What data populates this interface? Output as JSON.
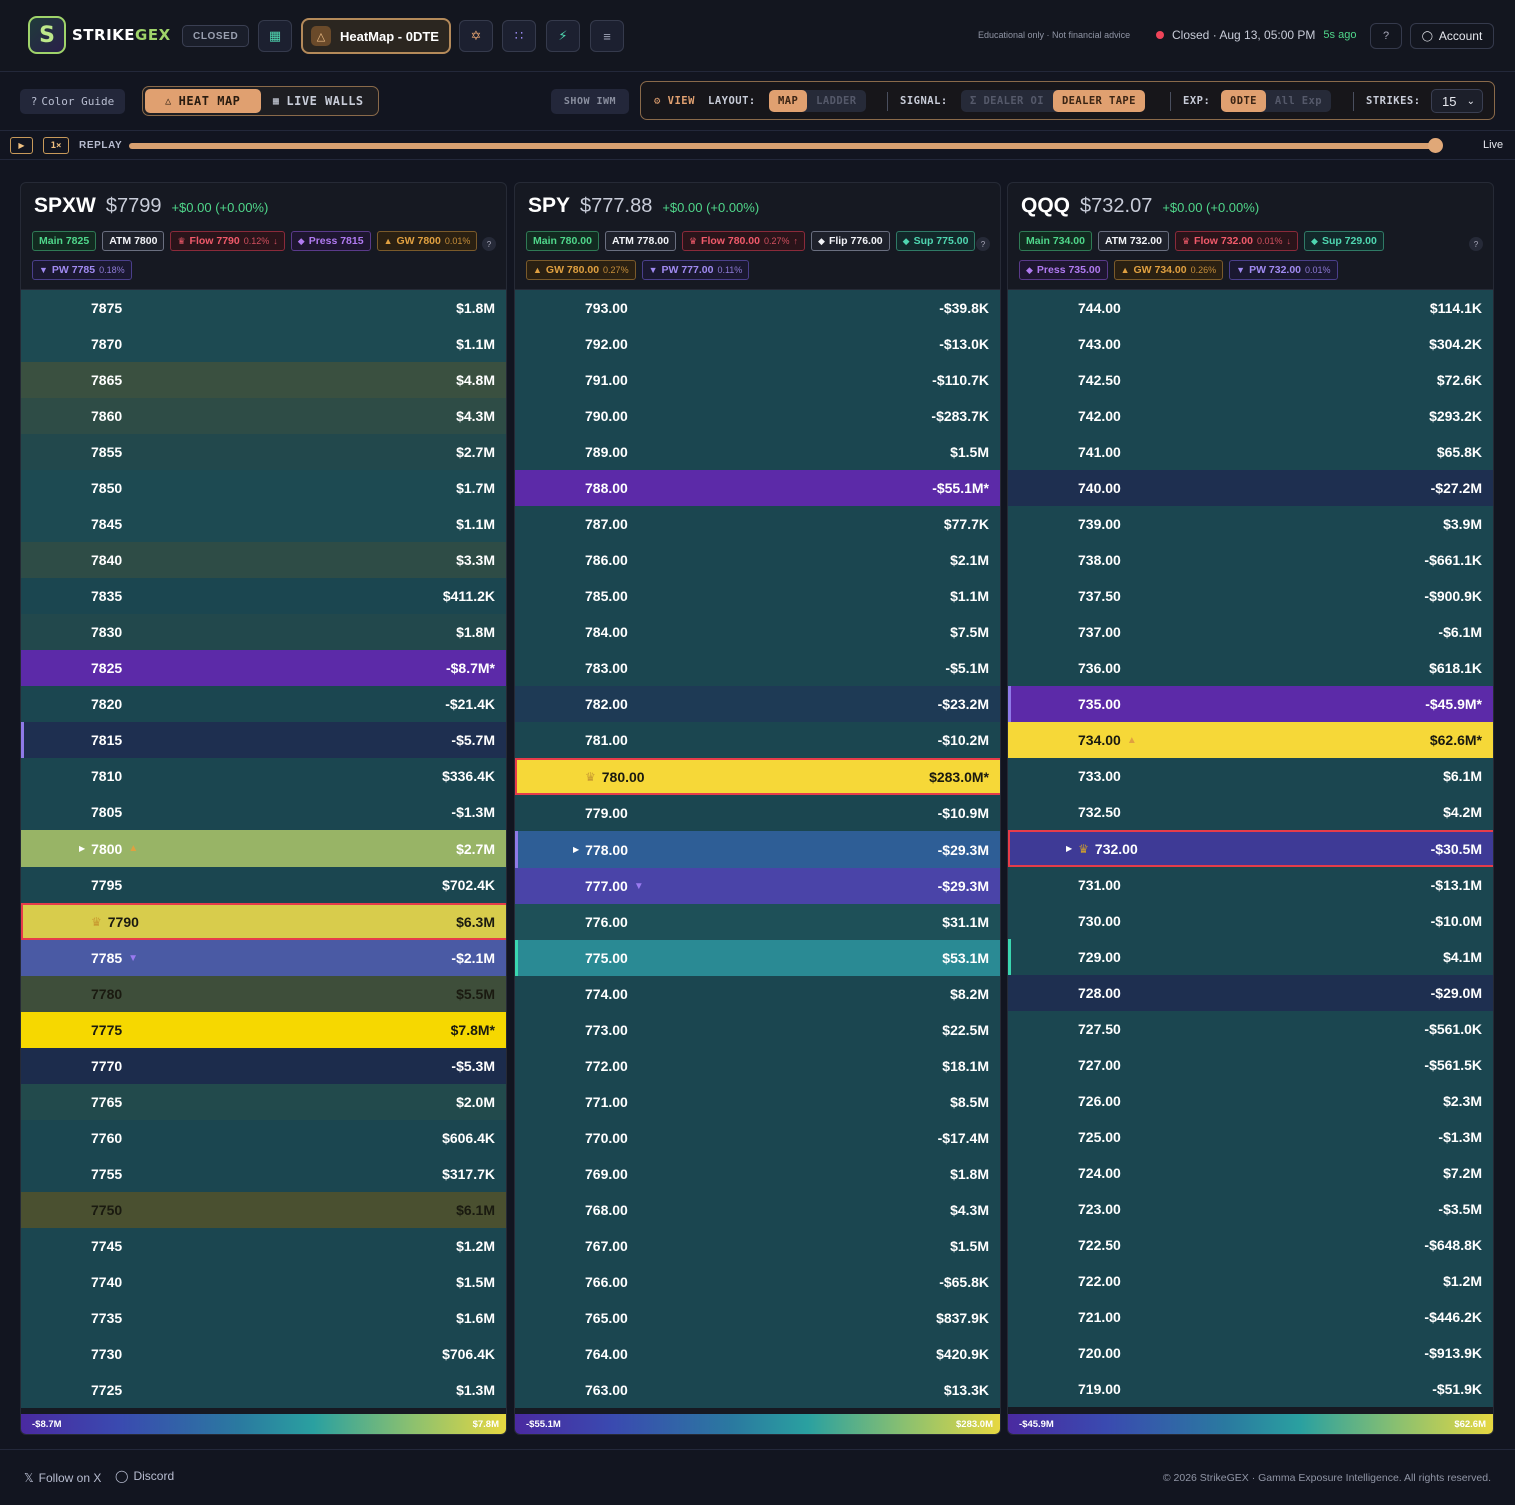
{
  "header": {
    "logo_text_a": "STRIKE",
    "logo_text_b": "GEX",
    "market_status_chip": "CLOSED",
    "active_tab": "HeatMap - 0DTE",
    "disclaimer": "Educational only · Not financial advice",
    "status_text": "Closed · Aug 13, 05:00 PM",
    "status_ago": "5s ago",
    "account_label": "Account"
  },
  "toolbar": {
    "color_guide": "Color Guide",
    "mode_tabs": [
      "HEAT MAP",
      "LIVE WALLS"
    ],
    "active_mode": "HEAT MAP",
    "show_iwm": "SHOW IWM",
    "view_label": "VIEW",
    "layout_label": "LAYOUT:",
    "layout_options": [
      "MAP",
      "LADDER"
    ],
    "layout_active": "MAP",
    "signal_label": "SIGNAL:",
    "signal_options": [
      "Σ DEALER OI",
      "DEALER TAPE"
    ],
    "signal_active": "DEALER TAPE",
    "exp_label": "EXP:",
    "exp_options": [
      "0DTE",
      "All Exp"
    ],
    "exp_active": "0DTE",
    "strikes_label": "STRIKES:",
    "strikes_value": "15"
  },
  "replay": {
    "speed": "1×",
    "label": "REPLAY",
    "live_label": "Live",
    "position": 1.0
  },
  "colors": {
    "accent": "#e0a070",
    "positive": "#4fd68a",
    "negative": "#ef4459",
    "call_wall": "#f6d838",
    "put_wall": "#6a2ab0"
  },
  "panels": [
    {
      "symbol": "SPXW",
      "price": "$7799",
      "change": "+$0.00 (+0.00%)",
      "tags": [
        {
          "type": "main",
          "text": "Main 7825"
        },
        {
          "type": "atm",
          "text": "ATM 7800"
        },
        {
          "type": "flow",
          "text": "Flow 7790",
          "pct": "0.12%",
          "dir": "↓",
          "icon": "crown-icon"
        },
        {
          "type": "press",
          "text": "Press 7815",
          "icon": "diamond-icon"
        },
        {
          "type": "gw",
          "text": "GW 7800",
          "pct": "0.01%",
          "icon": "up-triangle-icon"
        },
        {
          "type": "pw",
          "text": "PW 7785",
          "pct": "0.18%",
          "icon": "down-triangle-icon"
        }
      ],
      "rows": [
        {
          "strike": "7875",
          "value": "$1.8M",
          "bg": "#1d4a52"
        },
        {
          "strike": "7870",
          "value": "$1.1M",
          "bg": "#1d4a52"
        },
        {
          "strike": "7865",
          "value": "$4.8M",
          "bg": "#3a5040"
        },
        {
          "strike": "7860",
          "value": "$4.3M",
          "bg": "#2e4c46"
        },
        {
          "strike": "7855",
          "value": "$2.7M",
          "bg": "#22484c"
        },
        {
          "strike": "7850",
          "value": "$1.7M",
          "bg": "#1d4a52"
        },
        {
          "strike": "7845",
          "value": "$1.1M",
          "bg": "#1d4a52"
        },
        {
          "strike": "7840",
          "value": "$3.3M",
          "bg": "#2e4c46"
        },
        {
          "strike": "7835",
          "value": "$411.2K",
          "bg": "#1b4650"
        },
        {
          "strike": "7830",
          "value": "$1.8M",
          "bg": "#22484c"
        },
        {
          "strike": "7825",
          "value": "-$8.7M*",
          "bg": "#5c2aa8"
        },
        {
          "strike": "7820",
          "value": "-$21.4K",
          "bg": "#1b4650"
        },
        {
          "strike": "7815",
          "value": "-$5.7M",
          "bg": "#1e2f50",
          "leftbar": "purple"
        },
        {
          "strike": "7810",
          "value": "$336.4K",
          "bg": "#1b4650"
        },
        {
          "strike": "7805",
          "value": "-$1.3M",
          "bg": "#1b4650"
        },
        {
          "strike": "7800",
          "value": "$2.7M",
          "bg": "#98b466",
          "atm": true,
          "mark": "up"
        },
        {
          "strike": "7795",
          "value": "$702.4K",
          "bg": "#1b4650"
        },
        {
          "strike": "7790",
          "value": "$6.3M",
          "bg": "#d8cc4c",
          "dark": true,
          "boxed": true,
          "crown": true
        },
        {
          "strike": "7785",
          "value": "-$2.1M",
          "bg": "#4a5aa4",
          "mark": "down"
        },
        {
          "strike": "7780",
          "value": "$5.5M",
          "bg": "#3e4e3a",
          "dark": true
        },
        {
          "strike": "7775",
          "value": "$7.8M*",
          "bg": "#f6d800",
          "dark": true
        },
        {
          "strike": "7770",
          "value": "-$5.3M",
          "bg": "#1c2c4c"
        },
        {
          "strike": "7765",
          "value": "$2.0M",
          "bg": "#224a4c"
        },
        {
          "strike": "7760",
          "value": "$606.4K",
          "bg": "#1b4650"
        },
        {
          "strike": "7755",
          "value": "$317.7K",
          "bg": "#1b4650"
        },
        {
          "strike": "7750",
          "value": "$6.1M",
          "bg": "#4a5030",
          "dark": true
        },
        {
          "strike": "7745",
          "value": "$1.2M",
          "bg": "#1b4650"
        },
        {
          "strike": "7740",
          "value": "$1.5M",
          "bg": "#1b4650"
        },
        {
          "strike": "7735",
          "value": "$1.6M",
          "bg": "#1b4650"
        },
        {
          "strike": "7730",
          "value": "$706.4K",
          "bg": "#1b4650"
        },
        {
          "strike": "7725",
          "value": "$1.3M",
          "bg": "#1b4650"
        }
      ],
      "legend_min": "-$8.7M",
      "legend_max": "$7.8M"
    },
    {
      "symbol": "SPY",
      "price": "$777.88",
      "change": "+$0.00 (+0.00%)",
      "tags": [
        {
          "type": "main",
          "text": "Main 780.00"
        },
        {
          "type": "atm",
          "text": "ATM 778.00"
        },
        {
          "type": "flow",
          "text": "Flow 780.00",
          "pct": "0.27%",
          "dir": "↑",
          "icon": "crown-icon"
        },
        {
          "type": "flip",
          "text": "Flip 776.00",
          "icon": "diamond-icon"
        },
        {
          "type": "sup",
          "text": "Sup 775.00",
          "icon": "diamond-icon"
        },
        {
          "type": "gw",
          "text": "GW 780.00",
          "pct": "0.27%",
          "icon": "up-triangle-icon"
        },
        {
          "type": "pw",
          "text": "PW 777.00",
          "pct": "0.11%",
          "icon": "down-triangle-icon"
        }
      ],
      "rows": [
        {
          "strike": "793.00",
          "value": "-$39.8K",
          "bg": "#1b4650"
        },
        {
          "strike": "792.00",
          "value": "-$13.0K",
          "bg": "#1b4650"
        },
        {
          "strike": "791.00",
          "value": "-$110.7K",
          "bg": "#1b4650"
        },
        {
          "strike": "790.00",
          "value": "-$283.7K",
          "bg": "#1b4650"
        },
        {
          "strike": "789.00",
          "value": "$1.5M",
          "bg": "#1b4650"
        },
        {
          "strike": "788.00",
          "value": "-$55.1M*",
          "bg": "#5c2aa8"
        },
        {
          "strike": "787.00",
          "value": "$77.7K",
          "bg": "#1b4650"
        },
        {
          "strike": "786.00",
          "value": "$2.1M",
          "bg": "#1b4650"
        },
        {
          "strike": "785.00",
          "value": "$1.1M",
          "bg": "#1b4650"
        },
        {
          "strike": "784.00",
          "value": "$7.5M",
          "bg": "#1b4650"
        },
        {
          "strike": "783.00",
          "value": "-$5.1M",
          "bg": "#1b4650"
        },
        {
          "strike": "782.00",
          "value": "-$23.2M",
          "bg": "#1e3a55"
        },
        {
          "strike": "781.00",
          "value": "-$10.2M",
          "bg": "#1b4650"
        },
        {
          "strike": "780.00",
          "value": "$283.0M*",
          "bg": "#f6d838",
          "dark": true,
          "boxed": true,
          "crown": true
        },
        {
          "strike": "779.00",
          "value": "-$10.9M",
          "bg": "#1b4650"
        },
        {
          "strike": "778.00",
          "value": "-$29.3M",
          "bg": "#2e5e96",
          "atm": true,
          "leftbar": "purple"
        },
        {
          "strike": "777.00",
          "value": "-$29.3M",
          "bg": "#4a44a8",
          "mark": "down"
        },
        {
          "strike": "776.00",
          "value": "$31.1M",
          "bg": "#1e5058"
        },
        {
          "strike": "775.00",
          "value": "$53.1M",
          "bg": "#2a8a94",
          "leftbar": "teal"
        },
        {
          "strike": "774.00",
          "value": "$8.2M",
          "bg": "#1b4650"
        },
        {
          "strike": "773.00",
          "value": "$22.5M",
          "bg": "#1b4650"
        },
        {
          "strike": "772.00",
          "value": "$18.1M",
          "bg": "#1b4650"
        },
        {
          "strike": "771.00",
          "value": "$8.5M",
          "bg": "#1b4650"
        },
        {
          "strike": "770.00",
          "value": "-$17.4M",
          "bg": "#1b4650"
        },
        {
          "strike": "769.00",
          "value": "$1.8M",
          "bg": "#1b4650"
        },
        {
          "strike": "768.00",
          "value": "$4.3M",
          "bg": "#1b4650"
        },
        {
          "strike": "767.00",
          "value": "$1.5M",
          "bg": "#1b4650"
        },
        {
          "strike": "766.00",
          "value": "-$65.8K",
          "bg": "#1b4650"
        },
        {
          "strike": "765.00",
          "value": "$837.9K",
          "bg": "#1b4650"
        },
        {
          "strike": "764.00",
          "value": "$420.9K",
          "bg": "#1b4650"
        },
        {
          "strike": "763.00",
          "value": "$13.3K",
          "bg": "#1b4650"
        }
      ],
      "legend_min": "-$55.1M",
      "legend_max": "$283.0M"
    },
    {
      "symbol": "QQQ",
      "price": "$732.07",
      "change": "+$0.00 (+0.00%)",
      "tags": [
        {
          "type": "main",
          "text": "Main 734.00"
        },
        {
          "type": "atm",
          "text": "ATM 732.00"
        },
        {
          "type": "flow",
          "text": "Flow 732.00",
          "pct": "0.01%",
          "dir": "↓",
          "icon": "crown-icon"
        },
        {
          "type": "sup",
          "text": "Sup 729.00",
          "icon": "diamond-icon"
        },
        {
          "type": "press",
          "text": "Press 735.00",
          "icon": "diamond-icon"
        },
        {
          "type": "gw",
          "text": "GW 734.00",
          "pct": "0.26%",
          "icon": "up-triangle-icon"
        },
        {
          "type": "pw",
          "text": "PW 732.00",
          "pct": "0.01%",
          "icon": "down-triangle-icon"
        }
      ],
      "rows": [
        {
          "strike": "744.00",
          "value": "$114.1K",
          "bg": "#1b4650"
        },
        {
          "strike": "743.00",
          "value": "$304.2K",
          "bg": "#1b4650"
        },
        {
          "strike": "742.50",
          "value": "$72.6K",
          "bg": "#1b4650"
        },
        {
          "strike": "742.00",
          "value": "$293.2K",
          "bg": "#1b4650"
        },
        {
          "strike": "741.00",
          "value": "$65.8K",
          "bg": "#1b4650"
        },
        {
          "strike": "740.00",
          "value": "-$27.2M",
          "bg": "#1e2f50"
        },
        {
          "strike": "739.00",
          "value": "$3.9M",
          "bg": "#1b4650"
        },
        {
          "strike": "738.00",
          "value": "-$661.1K",
          "bg": "#1b4650"
        },
        {
          "strike": "737.50",
          "value": "-$900.9K",
          "bg": "#1b4650"
        },
        {
          "strike": "737.00",
          "value": "-$6.1M",
          "bg": "#1b4650"
        },
        {
          "strike": "736.00",
          "value": "$618.1K",
          "bg": "#1b4650"
        },
        {
          "strike": "735.00",
          "value": "-$45.9M*",
          "bg": "#5c2aa8",
          "leftbar": "purple"
        },
        {
          "strike": "734.00",
          "value": "$62.6M*",
          "bg": "#f6d838",
          "dark": true,
          "mark": "up"
        },
        {
          "strike": "733.00",
          "value": "$6.1M",
          "bg": "#1b4650"
        },
        {
          "strike": "732.50",
          "value": "$4.2M",
          "bg": "#1b4650"
        },
        {
          "strike": "732.00",
          "value": "-$30.5M",
          "bg": "#3e3a96",
          "atm": true,
          "boxed": true,
          "crown": true
        },
        {
          "strike": "731.00",
          "value": "-$13.1M",
          "bg": "#1b4650"
        },
        {
          "strike": "730.00",
          "value": "-$10.0M",
          "bg": "#1b4650"
        },
        {
          "strike": "729.00",
          "value": "$4.1M",
          "bg": "#1b4650",
          "leftbar": "teal"
        },
        {
          "strike": "728.00",
          "value": "-$29.0M",
          "bg": "#1e2f50"
        },
        {
          "strike": "727.50",
          "value": "-$561.0K",
          "bg": "#1b4650"
        },
        {
          "strike": "727.00",
          "value": "-$561.5K",
          "bg": "#1b4650"
        },
        {
          "strike": "726.00",
          "value": "$2.3M",
          "bg": "#1b4650"
        },
        {
          "strike": "725.00",
          "value": "-$1.3M",
          "bg": "#1b4650"
        },
        {
          "strike": "724.00",
          "value": "$7.2M",
          "bg": "#1b4650"
        },
        {
          "strike": "723.00",
          "value": "-$3.5M",
          "bg": "#1b4650"
        },
        {
          "strike": "722.50",
          "value": "-$648.8K",
          "bg": "#1b4650"
        },
        {
          "strike": "722.00",
          "value": "$1.2M",
          "bg": "#1b4650"
        },
        {
          "strike": "721.00",
          "value": "-$446.2K",
          "bg": "#1b4650"
        },
        {
          "strike": "720.00",
          "value": "-$913.9K",
          "bg": "#1b4650"
        },
        {
          "strike": "719.00",
          "value": "-$51.9K",
          "bg": "#1b4650"
        }
      ],
      "legend_min": "-$45.9M",
      "legend_max": "$62.6M"
    }
  ],
  "footer": {
    "follow_x": "Follow on X",
    "discord": "Discord",
    "copyright": "© 2026 StrikeGEX · Gamma Exposure Intelligence. All rights reserved."
  }
}
